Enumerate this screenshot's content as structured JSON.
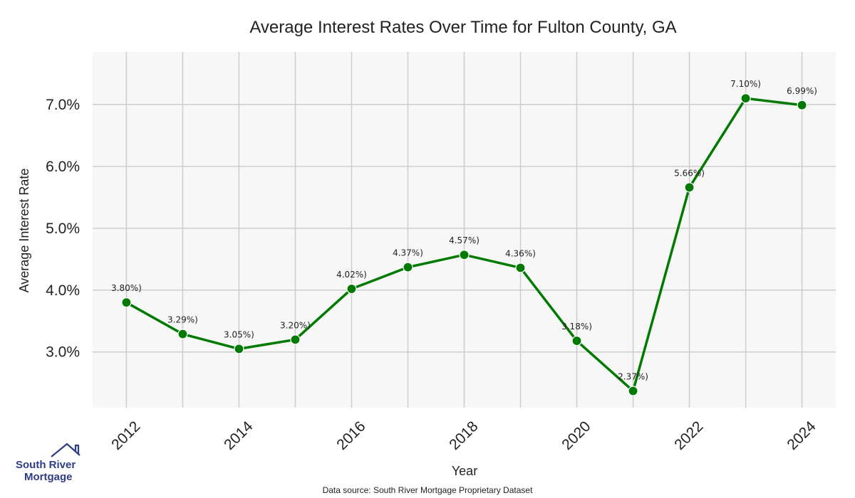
{
  "chart_data": {
    "type": "line",
    "title": "Average Interest Rates Over Time for Fulton County, GA",
    "xlabel": "Year",
    "ylabel": "Average Interest Rate",
    "x": [
      2012,
      2013,
      2014,
      2015,
      2016,
      2017,
      2018,
      2019,
      2020,
      2021,
      2022,
      2023,
      2024
    ],
    "values": [
      3.8,
      3.29,
      3.05,
      3.2,
      4.02,
      4.37,
      4.57,
      4.36,
      3.18,
      2.37,
      5.66,
      7.1,
      6.99
    ],
    "data_labels": [
      "3.80%)",
      "3.29%)",
      "3.05%)",
      "3.20%)",
      "4.02%)",
      "4.37%)",
      "4.57%)",
      "4.36%)",
      "3.18%)",
      "2.37%)",
      "5.66%)",
      "7.10%)",
      "6.99%)"
    ],
    "x_ticks": [
      2012,
      2014,
      2016,
      2018,
      2020,
      2022,
      2024
    ],
    "x_tick_labels": [
      "2012",
      "2014",
      "2016",
      "2018",
      "2020",
      "2022",
      "2024"
    ],
    "y_ticks": [
      3.0,
      4.0,
      5.0,
      6.0,
      7.0
    ],
    "y_tick_labels": [
      "3.0%",
      "4.0%",
      "5.0%",
      "6.0%",
      "7.0%"
    ],
    "xlim": [
      2011.4,
      2024.6
    ],
    "ylim": [
      2.1,
      7.85
    ],
    "grid": true,
    "colors": {
      "line": "#007a00",
      "plot_background": "#f7f7f7",
      "grid": "#cccccc"
    }
  },
  "source_note": "Data source: South River Mortgage Proprietary Dataset",
  "logo": {
    "line1": "South River",
    "line2": "Mortgage",
    "icon": "house-roof-icon",
    "color": "#2f3d87"
  }
}
